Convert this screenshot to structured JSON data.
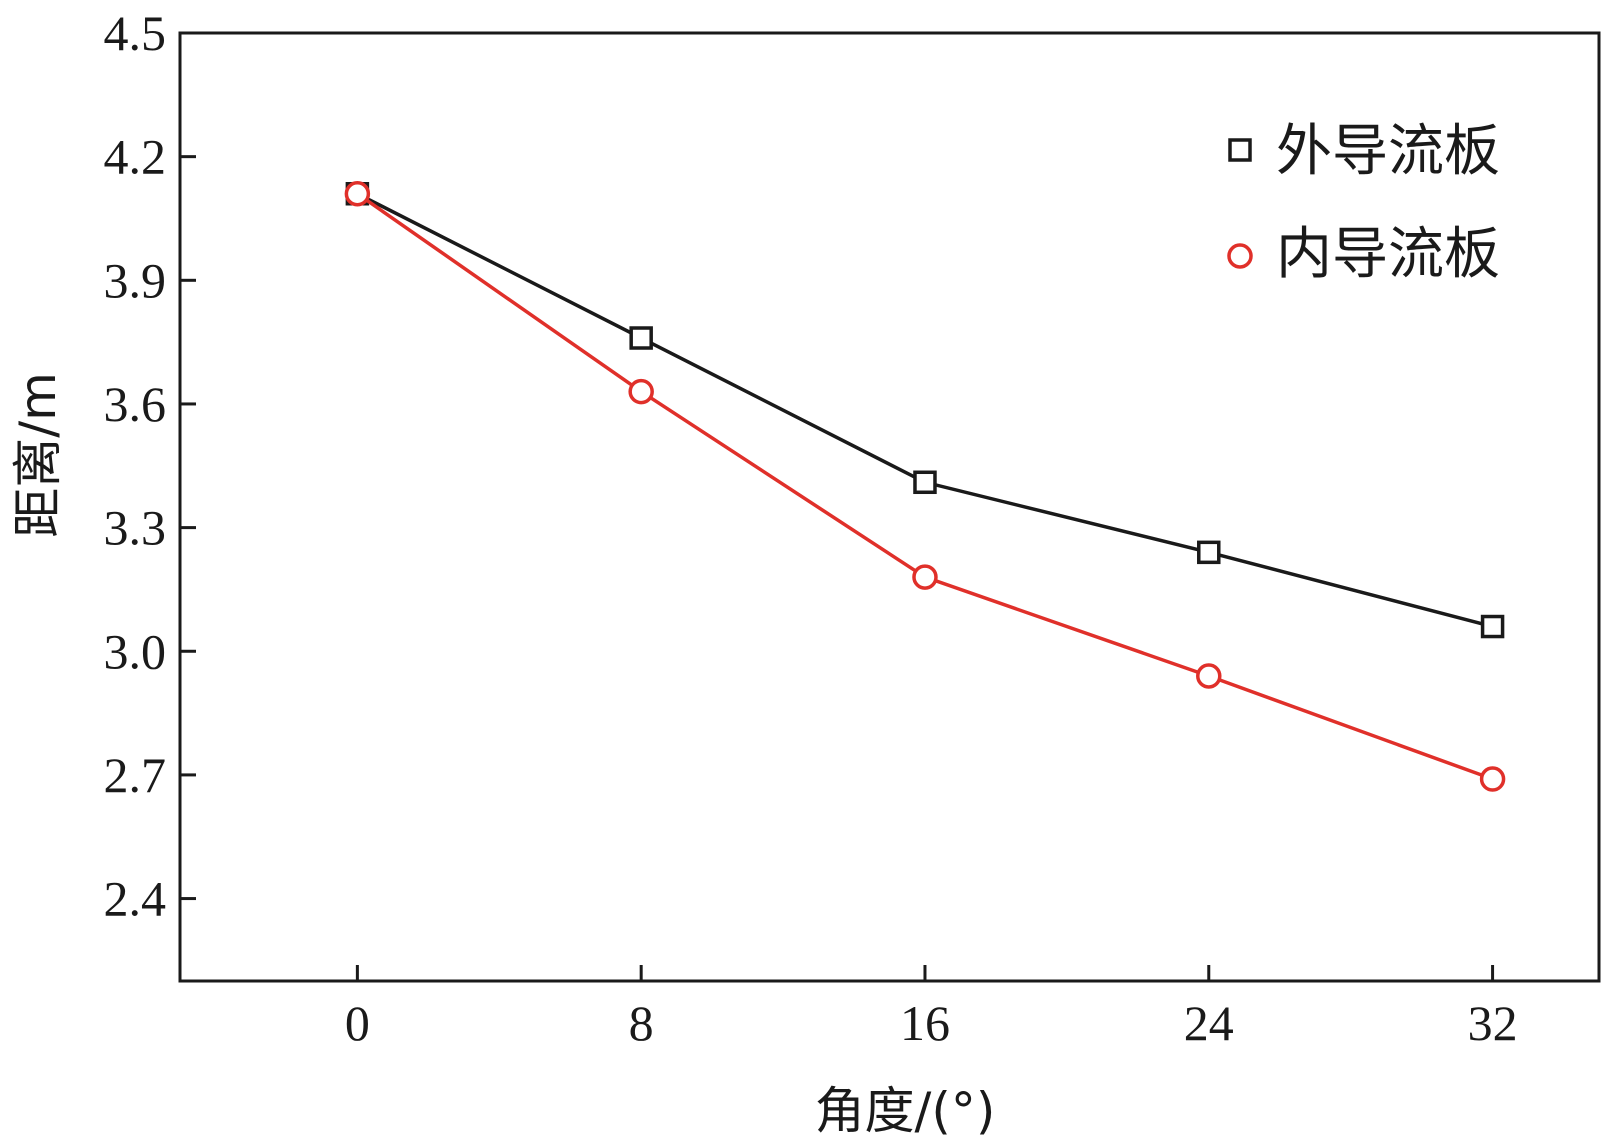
{
  "chart_data": {
    "type": "line",
    "xlabel": "角度/(°)",
    "ylabel": "距离/m",
    "x": [
      0,
      8,
      16,
      24,
      32
    ],
    "xlim": [
      -5,
      35
    ],
    "ylim": [
      2.2,
      4.5
    ],
    "xticks": [
      "0",
      "8",
      "16",
      "24",
      "32"
    ],
    "yticks": [
      "2.4",
      "2.7",
      "3.0",
      "3.3",
      "3.6",
      "3.9",
      "4.2",
      "4.5"
    ],
    "grid": false,
    "legend_position": "top-right",
    "series": [
      {
        "name": "外导流板",
        "marker": "square",
        "color": "#1a1a1a",
        "values": [
          4.11,
          3.76,
          3.41,
          3.24,
          3.06
        ]
      },
      {
        "name": "内导流板",
        "marker": "circle",
        "color": "#e0302a",
        "values": [
          4.11,
          3.63,
          3.18,
          2.94,
          2.69
        ]
      }
    ]
  }
}
